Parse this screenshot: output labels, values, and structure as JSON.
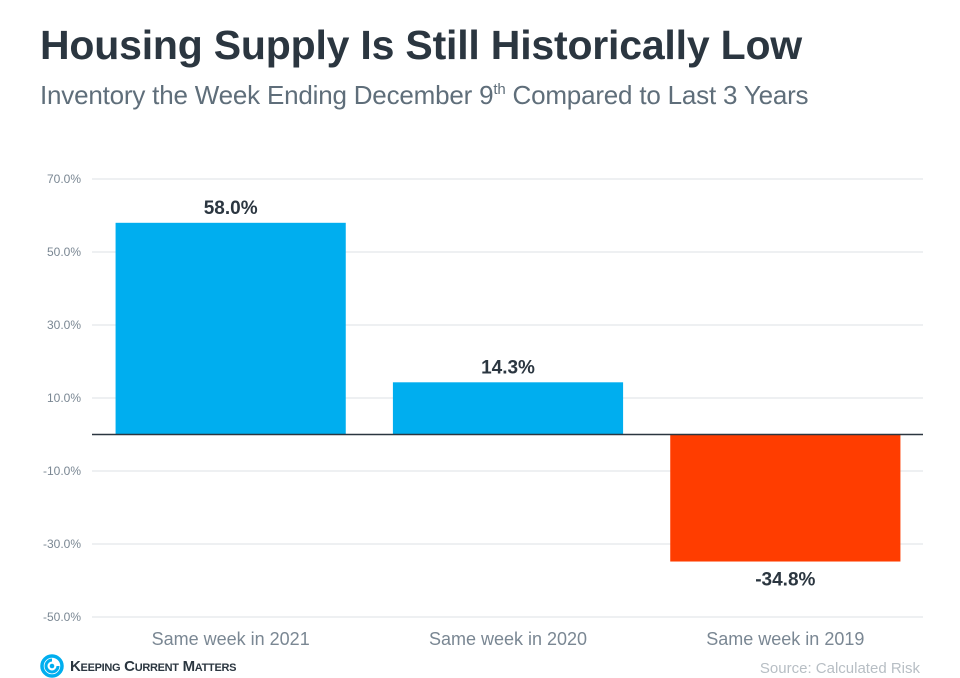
{
  "header": {
    "title": "Housing Supply Is Still Historically Low",
    "subtitle_main": "Inventory the Week Ending December 9",
    "subtitle_sup": "th",
    "subtitle_rest": " Compared to Last 3 Years"
  },
  "footer": {
    "logo_text": "Keeping Current Matters",
    "source": "Source: Calculated Risk"
  },
  "colors": {
    "positive": "#00AEEF",
    "negative": "#FF3D00",
    "title": "#2B3640",
    "axis_text": "#7A8793",
    "grid": "#DCE1E4",
    "zero_line": "#2B3640",
    "logo": "#00AEEF"
  },
  "chart_data": {
    "type": "bar",
    "title": "Housing Supply Is Still Historically Low",
    "subtitle": "Inventory the Week Ending December 9th Compared to Last 3 Years",
    "xlabel": "",
    "ylabel": "",
    "categories": [
      "Same week in 2021",
      "Same week in 2020",
      "Same week in 2019"
    ],
    "values": [
      58.0,
      14.3,
      -34.8
    ],
    "data_labels": [
      "58.0%",
      "14.3%",
      "-34.8%"
    ],
    "ylim": [
      -50,
      70
    ],
    "yticks": [
      70,
      50,
      30,
      10,
      -10,
      -30,
      -50
    ],
    "ytick_labels": [
      "70.0%",
      "50.0%",
      "30.0%",
      "10.0%",
      "-10.0%",
      "-30.0%",
      "-50.0%"
    ],
    "grid": true,
    "legend": "none"
  }
}
